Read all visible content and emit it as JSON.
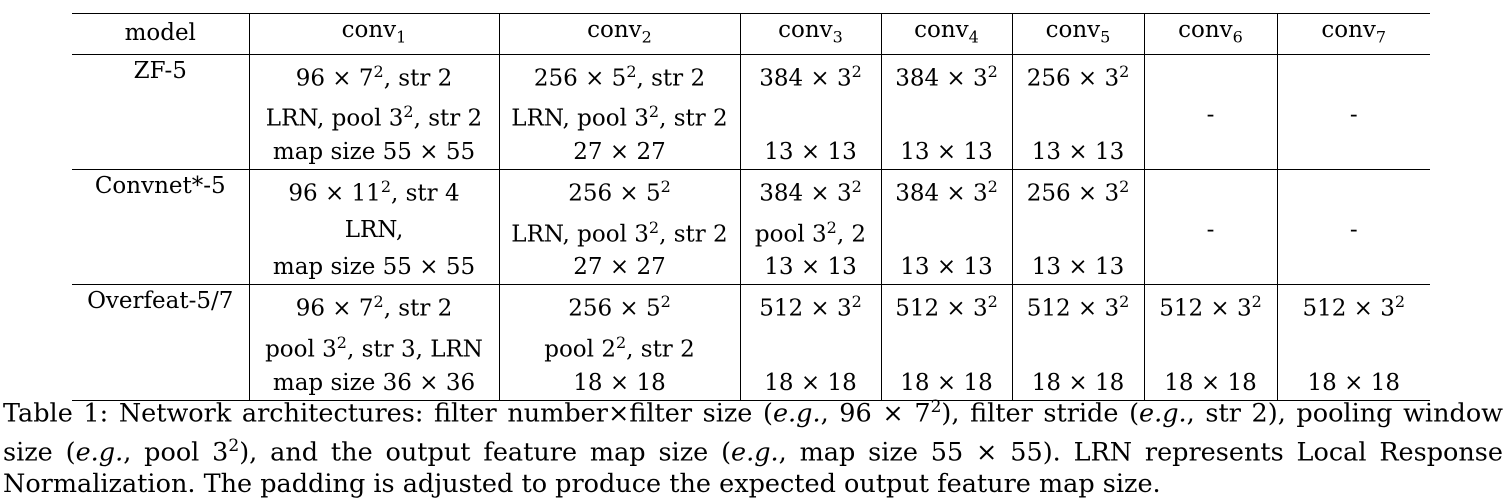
{
  "table": {
    "header": {
      "model": "model",
      "cols": [
        {
          "base": "conv",
          "sub": "1"
        },
        {
          "base": "conv",
          "sub": "2"
        },
        {
          "base": "conv",
          "sub": "3"
        },
        {
          "base": "conv",
          "sub": "4"
        },
        {
          "base": "conv",
          "sub": "5"
        },
        {
          "base": "conv",
          "sub": "6"
        },
        {
          "base": "conv",
          "sub": "7"
        }
      ]
    },
    "groups": [
      {
        "model": "ZF-5",
        "rows": [
          [
            {
              "t": "96 × 7",
              "sup": "2",
              "a": ", str 2"
            },
            {
              "t": "256 × 5",
              "sup": "2",
              "a": ", str 2"
            },
            {
              "t": "384 × 3",
              "sup": "2"
            },
            {
              "t": "384 × 3",
              "sup": "2"
            },
            {
              "t": "256 × 3",
              "sup": "2"
            },
            {
              "t": ""
            },
            {
              "t": ""
            }
          ],
          [
            {
              "t": "LRN, pool 3",
              "sup": "2",
              "a": ", str 2"
            },
            {
              "t": "LRN, pool 3",
              "sup": "2",
              "a": ", str 2"
            },
            {
              "t": ""
            },
            {
              "t": ""
            },
            {
              "t": ""
            },
            {
              "t": "-"
            },
            {
              "t": "-"
            }
          ],
          [
            {
              "t": "map size 55 × 55"
            },
            {
              "t": "27 × 27"
            },
            {
              "t": "13 × 13"
            },
            {
              "t": "13 × 13"
            },
            {
              "t": "13 × 13"
            },
            {
              "t": ""
            },
            {
              "t": ""
            }
          ]
        ]
      },
      {
        "model": "Convnet*-5",
        "rows": [
          [
            {
              "t": "96 × 11",
              "sup": "2",
              "a": ", str 4"
            },
            {
              "t": "256 × 5",
              "sup": "2"
            },
            {
              "t": "384 × 3",
              "sup": "2"
            },
            {
              "t": "384 × 3",
              "sup": "2"
            },
            {
              "t": "256 × 3",
              "sup": "2"
            },
            {
              "t": ""
            },
            {
              "t": ""
            }
          ],
          [
            {
              "t": "LRN,"
            },
            {
              "t": "LRN, pool 3",
              "sup": "2",
              "a": ", str 2"
            },
            {
              "t": "pool 3",
              "sup": "2",
              "a": ", 2"
            },
            {
              "t": ""
            },
            {
              "t": ""
            },
            {
              "t": "-"
            },
            {
              "t": "-"
            }
          ],
          [
            {
              "t": "map size 55 × 55"
            },
            {
              "t": "27 × 27"
            },
            {
              "t": "13 × 13"
            },
            {
              "t": "13 × 13"
            },
            {
              "t": "13 × 13"
            },
            {
              "t": ""
            },
            {
              "t": ""
            }
          ]
        ]
      },
      {
        "model": "Overfeat-5/7",
        "rows": [
          [
            {
              "t": "96 × 7",
              "sup": "2",
              "a": ", str 2"
            },
            {
              "t": "256 × 5",
              "sup": "2"
            },
            {
              "t": "512 × 3",
              "sup": "2"
            },
            {
              "t": "512 × 3",
              "sup": "2"
            },
            {
              "t": "512 × 3",
              "sup": "2"
            },
            {
              "t": "512 × 3",
              "sup": "2"
            },
            {
              "t": "512 × 3",
              "sup": "2"
            }
          ],
          [
            {
              "t": "pool 3",
              "sup": "2",
              "a": ", str 3, LRN"
            },
            {
              "t": "pool 2",
              "sup": "2",
              "a": ", str 2"
            },
            {
              "t": ""
            },
            {
              "t": ""
            },
            {
              "t": ""
            },
            {
              "t": ""
            },
            {
              "t": ""
            }
          ],
          [
            {
              "t": "map size 36 × 36"
            },
            {
              "t": "18 × 18"
            },
            {
              "t": "18 × 18"
            },
            {
              "t": "18 × 18"
            },
            {
              "t": "18 × 18"
            },
            {
              "t": "18 × 18"
            },
            {
              "t": "18 × 18"
            }
          ]
        ]
      }
    ]
  },
  "caption": [
    {
      "t": "Table 1: Network architectures: filter number×filter size ("
    },
    {
      "t": "e.g.",
      "i": true
    },
    {
      "t": ", 96 × 7"
    },
    {
      "t": "2",
      "sup": true
    },
    {
      "t": "), filter stride ("
    },
    {
      "t": "e.g.",
      "i": true
    },
    {
      "t": ", str 2), pooling window size ("
    },
    {
      "t": "e.g.",
      "i": true
    },
    {
      "t": ", pool 3"
    },
    {
      "t": "2",
      "sup": true
    },
    {
      "t": "), and the output feature map size ("
    },
    {
      "t": "e.g.",
      "i": true
    },
    {
      "t": ", map size 55 × 55). LRN represents Local Response Normalization. The padding is adjusted to produce the expected output feature map size."
    }
  ]
}
